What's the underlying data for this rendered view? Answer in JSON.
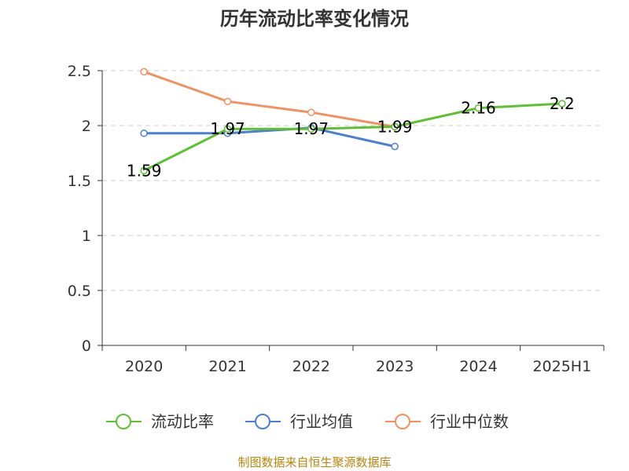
{
  "title": "历年流动比率变化情况",
  "source": "制图数据来自恒生聚源数据库",
  "chart_data": {
    "type": "line",
    "categories": [
      "2020",
      "2021",
      "2022",
      "2023",
      "2024",
      "2025H1"
    ],
    "ylim": [
      0,
      2.5
    ],
    "yticks": [
      "0",
      "0.5",
      "1",
      "1.5",
      "2",
      "2.5"
    ],
    "grid": true,
    "legend_position": "bottom",
    "series": [
      {
        "name": "流动比率",
        "color": "#5ec12f",
        "values": [
          1.59,
          1.97,
          1.97,
          1.99,
          2.16,
          2.2
        ],
        "labels": [
          "1.59",
          "1.97",
          "1.97",
          "1.99",
          "2.16",
          "2.2"
        ]
      },
      {
        "name": "行业均值",
        "color": "#4a7fd8",
        "values": [
          1.93,
          1.93,
          1.98,
          1.81,
          null,
          null
        ]
      },
      {
        "name": "行业中位数",
        "color": "#f39060",
        "values": [
          2.49,
          2.22,
          2.12,
          1.99,
          null,
          null
        ]
      }
    ]
  }
}
